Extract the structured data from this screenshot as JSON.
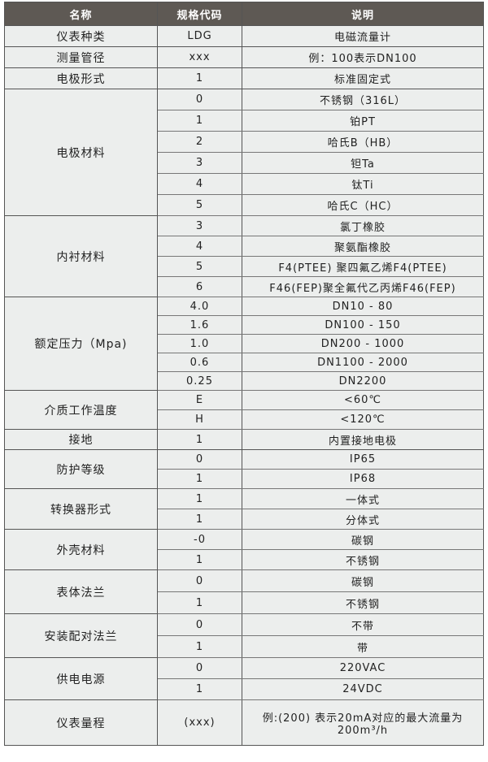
{
  "header": {
    "name": "名称",
    "code": "规格代码",
    "desc": "说明"
  },
  "colors": {
    "header_bg": "#5e5954",
    "body_bg": "#eceeed",
    "border": "#555555"
  },
  "groups": [
    {
      "name": "仪表种类",
      "rows": [
        {
          "code": "LDG",
          "desc": "电磁流量计"
        }
      ]
    },
    {
      "name": "测量管径",
      "rows": [
        {
          "code": "xxx",
          "desc": "例：100表示DN100"
        }
      ]
    },
    {
      "name": "电极形式",
      "rows": [
        {
          "code": "1",
          "desc": "标准固定式"
        }
      ]
    },
    {
      "name": "电极材料",
      "rows": [
        {
          "code": "0",
          "desc": "不锈钢（316L）"
        },
        {
          "code": "1",
          "desc": "铂PT"
        },
        {
          "code": "2",
          "desc": "哈氏B（HB）"
        },
        {
          "code": "3",
          "desc": "钽Ta"
        },
        {
          "code": "4",
          "desc": "钛Ti"
        },
        {
          "code": "5",
          "desc": "哈氏C（HC）"
        }
      ]
    },
    {
      "name": "内衬材料",
      "rows": [
        {
          "code": "3",
          "desc": "氯丁橡胶"
        },
        {
          "code": "4",
          "desc": "聚氨酯橡胶"
        },
        {
          "code": "5",
          "desc": "F4(PTEE) 聚四氟乙烯F4(PTEE)"
        },
        {
          "code": "6",
          "desc": "F46(FEP)聚全氟代乙丙烯F46(FEP)"
        }
      ]
    },
    {
      "name": "额定压力（Mpa)",
      "rows": [
        {
          "code": "4.0",
          "desc": "DN10 - 80"
        },
        {
          "code": "1.6",
          "desc": "DN100 - 150"
        },
        {
          "code": "1.0",
          "desc": "DN200 - 1000"
        },
        {
          "code": "0.6",
          "desc": "DN1100 - 2000"
        },
        {
          "code": "0.25",
          "desc": "DN2200"
        }
      ]
    },
    {
      "name": "介质工作温度",
      "rows": [
        {
          "code": "E",
          "desc": "<60℃"
        },
        {
          "code": "H",
          "desc": "<120℃"
        }
      ]
    },
    {
      "name": "接地",
      "rows": [
        {
          "code": "1",
          "desc": "内置接地电极"
        }
      ]
    },
    {
      "name": "防护等级",
      "rows": [
        {
          "code": "0",
          "desc": "IP65"
        },
        {
          "code": "1",
          "desc": "IP68"
        }
      ]
    },
    {
      "name": "转换器形式",
      "rows": [
        {
          "code": "1",
          "desc": "一体式"
        },
        {
          "code": "1",
          "desc": "分体式"
        }
      ]
    },
    {
      "name": "外壳材料",
      "rows": [
        {
          "code": "-0",
          "desc": "碳钢"
        },
        {
          "code": "1",
          "desc": "不锈钢"
        }
      ]
    },
    {
      "name": "表体法兰",
      "rows": [
        {
          "code": "0",
          "desc": "碳钢"
        },
        {
          "code": "1",
          "desc": "不锈钢"
        }
      ]
    },
    {
      "name": "安装配对法兰",
      "rows": [
        {
          "code": "0",
          "desc": "不带"
        },
        {
          "code": "1",
          "desc": "带"
        }
      ]
    },
    {
      "name": "供电电源",
      "rows": [
        {
          "code": "0",
          "desc": "220VAC"
        },
        {
          "code": "1",
          "desc": "24VDC"
        }
      ]
    },
    {
      "name": "仪表量程",
      "rows": [
        {
          "code": "(xxx)",
          "desc": "例:(200) 表示20mA对应的最大流量为200m³/h"
        }
      ]
    }
  ]
}
